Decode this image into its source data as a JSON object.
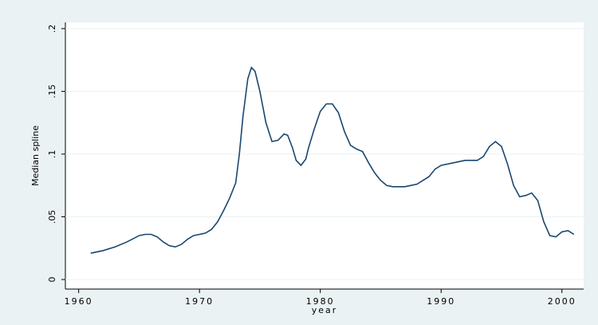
{
  "chart_data": {
    "type": "line",
    "x_label": "year",
    "y_label": "Median spline",
    "x": [
      1961,
      1962,
      1963,
      1964,
      1965,
      1965.5,
      1966,
      1966.5,
      1967,
      1967.5,
      1968,
      1968.5,
      1969,
      1969.5,
      1970,
      1970.5,
      1971,
      1971.5,
      1972,
      1972.5,
      1973,
      1973.3,
      1973.6,
      1974,
      1974.3,
      1974.6,
      1975,
      1975.5,
      1976,
      1976.5,
      1977,
      1977.3,
      1977.7,
      1978,
      1978.4,
      1978.8,
      1979,
      1979.5,
      1980,
      1980.5,
      1981,
      1981.5,
      1982,
      1982.5,
      1983,
      1983.5,
      1984,
      1984.5,
      1985,
      1985.5,
      1986,
      1987,
      1988,
      1989,
      1989.5,
      1990,
      1991,
      1992,
      1993,
      1993.5,
      1994,
      1994.5,
      1995,
      1995.5,
      1996,
      1996.5,
      1997,
      1997.5,
      1998,
      1998.5,
      1999,
      1999.5,
      2000,
      2000.5,
      2001
    ],
    "series": [
      {
        "color": "#1a476f",
        "values": [
          0.021,
          0.023,
          0.026,
          0.03,
          0.035,
          0.036,
          0.036,
          0.034,
          0.03,
          0.027,
          0.026,
          0.028,
          0.032,
          0.035,
          0.036,
          0.037,
          0.04,
          0.046,
          0.055,
          0.065,
          0.077,
          0.1,
          0.13,
          0.16,
          0.169,
          0.166,
          0.15,
          0.125,
          0.11,
          0.111,
          0.116,
          0.115,
          0.105,
          0.095,
          0.091,
          0.096,
          0.104,
          0.12,
          0.134,
          0.14,
          0.14,
          0.133,
          0.118,
          0.107,
          0.104,
          0.102,
          0.093,
          0.085,
          0.079,
          0.075,
          0.074,
          0.074,
          0.076,
          0.082,
          0.088,
          0.091,
          0.093,
          0.095,
          0.095,
          0.098,
          0.106,
          0.11,
          0.106,
          0.092,
          0.075,
          0.066,
          0.067,
          0.069,
          0.063,
          0.046,
          0.035,
          0.034,
          0.038,
          0.039,
          0.036
        ]
      }
    ],
    "xlim": [
      1958.9,
      2001.8
    ],
    "xticks": [
      1960,
      1970,
      1980,
      1990,
      2000
    ],
    "ylim": [
      -0.0076,
      0.205
    ],
    "yticks": [
      0,
      {
        "value": 0.05,
        "label": ".05"
      },
      {
        "value": 0.1,
        "label": ".1"
      },
      {
        "value": 0.15,
        "label": ".15"
      },
      {
        "value": 0.2,
        "label": ".2"
      }
    ],
    "grid": true
  }
}
